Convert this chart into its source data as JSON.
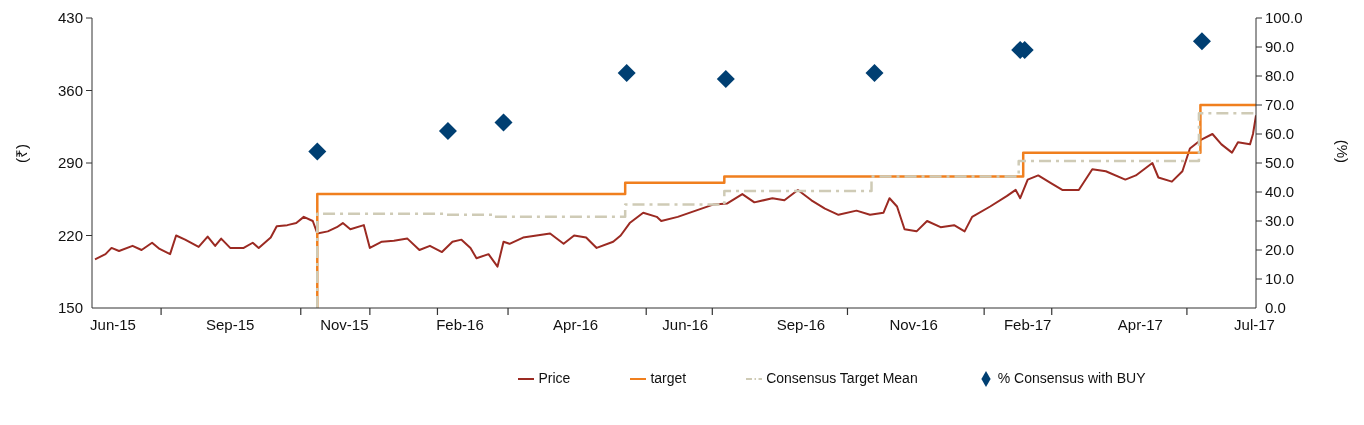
{
  "chart_data": {
    "type": "line",
    "ylabel": "(₹)",
    "y2label": "(%)",
    "legend": "bottom",
    "xlim": [
      "2015-06-01",
      "2017-07-15"
    ],
    "xticks": [
      {
        "value": "2015-06-15",
        "label": "Jun-15"
      },
      {
        "value": "2015-07-17",
        "label": null
      },
      {
        "value": "2015-09-01",
        "label": "Sep-15"
      },
      {
        "value": "2015-10-18",
        "label": null
      },
      {
        "value": "2015-11-16",
        "label": "Nov-15"
      },
      {
        "value": "2015-12-03",
        "label": null
      },
      {
        "value": "2016-01-17",
        "label": null
      },
      {
        "value": "2016-02-01",
        "label": "Feb-16"
      },
      {
        "value": "2016-03-04",
        "label": null
      },
      {
        "value": "2016-04-18",
        "label": "Apr-16"
      },
      {
        "value": "2016-06-04",
        "label": null
      },
      {
        "value": "2016-06-30",
        "label": "Jun-16"
      },
      {
        "value": "2016-07-18",
        "label": null
      },
      {
        "value": "2016-09-15",
        "label": "Sep-16"
      },
      {
        "value": "2016-10-16",
        "label": null
      },
      {
        "value": "2016-11-29",
        "label": "Nov-16"
      },
      {
        "value": "2017-01-15",
        "label": null
      },
      {
        "value": "2017-02-13",
        "label": "Feb-17"
      },
      {
        "value": "2017-03-01",
        "label": null
      },
      {
        "value": "2017-04-29",
        "label": "Apr-17"
      },
      {
        "value": "2017-05-30",
        "label": null
      },
      {
        "value": "2017-07-14",
        "label": "Jul-17"
      }
    ],
    "ylim": [
      150,
      430
    ],
    "yticks": [
      150,
      220,
      290,
      360,
      430
    ],
    "y2lim": [
      0,
      100
    ],
    "y2ticks": [
      {
        "value": 0,
        "label": "0.0"
      },
      {
        "value": 10,
        "label": "10.0"
      },
      {
        "value": 20,
        "label": "20.0"
      },
      {
        "value": 30,
        "label": "30.0"
      },
      {
        "value": 40,
        "label": "40.0"
      },
      {
        "value": 50,
        "label": "50.0"
      },
      {
        "value": 60,
        "label": "60.0"
      },
      {
        "value": 70,
        "label": "70.0"
      },
      {
        "value": 80,
        "label": "80.0"
      },
      {
        "value": 90,
        "label": "90.0"
      },
      {
        "value": 100,
        "label": "100.0"
      }
    ],
    "series": [
      {
        "name": "Price",
        "color": "#9b2a22",
        "line_style": "solid",
        "marker": "none",
        "x": [
          "2015-06-03",
          "2015-06-10",
          "2015-06-14",
          "2015-06-19",
          "2015-06-28",
          "2015-07-04",
          "2015-07-11",
          "2015-07-16",
          "2015-07-23",
          "2015-07-27",
          "2015-08-02",
          "2015-08-11",
          "2015-08-17",
          "2015-08-22",
          "2015-08-26",
          "2015-09-01",
          "2015-09-10",
          "2015-09-16",
          "2015-09-20",
          "2015-09-28",
          "2015-10-02",
          "2015-10-09",
          "2015-10-15",
          "2015-10-20",
          "2015-10-26",
          "2015-10-29",
          "2015-11-05",
          "2015-11-11",
          "2015-11-15",
          "2015-11-20",
          "2015-11-29",
          "2015-12-03",
          "2015-12-11",
          "2015-12-19",
          "2015-12-28",
          "2016-01-05",
          "2016-01-12",
          "2016-01-20",
          "2016-01-27",
          "2016-02-02",
          "2016-02-08",
          "2016-02-12",
          "2016-02-20",
          "2016-02-26",
          "2016-03-01",
          "2016-03-05",
          "2016-03-14",
          "2016-03-23",
          "2016-04-01",
          "2016-04-10",
          "2016-04-17",
          "2016-04-25",
          "2016-05-02",
          "2016-05-13",
          "2016-05-18",
          "2016-05-24",
          "2016-06-02",
          "2016-06-11",
          "2016-06-14",
          "2016-06-25",
          "2016-07-07",
          "2016-07-19",
          "2016-07-28",
          "2016-08-07",
          "2016-08-15",
          "2016-08-27",
          "2016-09-04",
          "2016-09-13",
          "2016-09-22",
          "2016-10-01",
          "2016-10-10",
          "2016-10-22",
          "2016-10-31",
          "2016-11-09",
          "2016-11-13",
          "2016-11-18",
          "2016-11-23",
          "2016-12-01",
          "2016-12-08",
          "2016-12-17",
          "2016-12-26",
          "2017-01-02",
          "2017-01-07",
          "2017-01-19",
          "2017-01-30",
          "2017-02-05",
          "2017-02-08",
          "2017-02-13",
          "2017-02-20",
          "2017-03-01",
          "2017-03-08",
          "2017-03-19",
          "2017-03-28",
          "2017-04-06",
          "2017-04-19",
          "2017-04-26",
          "2017-05-07",
          "2017-05-11",
          "2017-05-20",
          "2017-05-27",
          "2017-06-01",
          "2017-06-08",
          "2017-06-16",
          "2017-06-22",
          "2017-06-29",
          "2017-07-03",
          "2017-07-11",
          "2017-07-13",
          "2017-07-15"
        ],
        "values": [
          197,
          202,
          208,
          205,
          210,
          206,
          213,
          207,
          202,
          220,
          216,
          209,
          219,
          210,
          217,
          208,
          208,
          213,
          208,
          218,
          229,
          230,
          232,
          238,
          234,
          222,
          224,
          228,
          232,
          226,
          230,
          208,
          214,
          215,
          217,
          206,
          210,
          204,
          214,
          216,
          208,
          198,
          202,
          190,
          214,
          212,
          218,
          220,
          222,
          212,
          220,
          218,
          208,
          214,
          220,
          232,
          242,
          238,
          234,
          238,
          244,
          250,
          251,
          260,
          252,
          256,
          254,
          264,
          254,
          246,
          240,
          244,
          240,
          242,
          256,
          248,
          226,
          224,
          234,
          228,
          230,
          224,
          238,
          248,
          258,
          264,
          256,
          274,
          278,
          270,
          264,
          264,
          284,
          282,
          274,
          278,
          290,
          276,
          272,
          282,
          304,
          312,
          318,
          308,
          300,
          310,
          308,
          318,
          336
        ]
      },
      {
        "name": "target",
        "type": "step",
        "color": "#f07f1e",
        "line_style": "solid",
        "marker": "none",
        "x": [
          "2015-10-29",
          "2015-10-29",
          "2016-05-21",
          "2016-07-26",
          "2017-02-10",
          "2017-06-08",
          "2017-07-15"
        ],
        "values": [
          150,
          260,
          271,
          277,
          300,
          346,
          346
        ]
      },
      {
        "name": "Consensus Target Mean",
        "type": "step",
        "color": "#cfcbb6",
        "line_style": "dashed",
        "marker": "none",
        "x": [
          "2015-10-29",
          "2015-10-29",
          "2016-01-21",
          "2016-02-23",
          "2016-05-21",
          "2016-07-26",
          "2016-11-01",
          "2017-02-07",
          "2017-06-07",
          "2017-07-15"
        ],
        "values": [
          150,
          241,
          240,
          238,
          250,
          263,
          277,
          292,
          338,
          338
        ]
      },
      {
        "name": "% Consensus with BUY",
        "type": "scatter",
        "axis": "y2",
        "color": "#003f72",
        "marker": "diamond",
        "x": [
          "2015-10-29",
          "2016-01-24",
          "2016-03-01",
          "2016-05-22",
          "2016-07-27",
          "2016-11-03",
          "2017-02-08",
          "2017-02-11",
          "2017-06-09"
        ],
        "values": [
          54,
          61,
          64,
          81,
          79,
          81,
          89,
          89,
          92
        ]
      }
    ]
  }
}
